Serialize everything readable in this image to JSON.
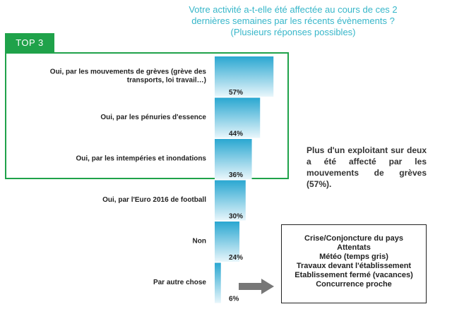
{
  "question": "Votre activité a-t-elle été affectée au cours de ces 2\ndernières semaines par les récents évènements ?\n(Plusieurs réponses possibles)",
  "top3_label": "TOP 3",
  "note": "Plus d'un exploitant sur deux a été affecté par les mouvements de grèves (57%).",
  "other_box": {
    "items": [
      "Crise/Conjoncture du pays",
      "Attentats",
      "Météo (temps gris)",
      "Travaux devant l'établissement",
      "Etablissement fermé (vacances)",
      "Concurrence proche"
    ]
  },
  "colors": {
    "bar_top": "#2aa7d1",
    "bar_bottom": "#e8f6fb",
    "accent_green": "#1fa24a",
    "question": "#36b6c9"
  },
  "chart_data": {
    "type": "bar",
    "orientation": "horizontal",
    "categories": [
      "Oui, par les mouvements de grèves (grève des transports, loi travail…)",
      "Oui, par les pénuries d'essence",
      "Oui, par les intempéries et inondations",
      "Oui, par l'Euro 2016 de football",
      "Non",
      "Par autre chose"
    ],
    "category_lines": [
      [
        "Oui, par les mouvements de grèves (grève des",
        "transports, loi travail…)"
      ],
      [
        "Oui, par les pénuries d'essence"
      ],
      [
        "Oui, par les intempéries et inondations"
      ],
      [
        "Oui, par l'Euro 2016 de football"
      ],
      [
        "Non"
      ],
      [
        "Par autre chose"
      ]
    ],
    "values": [
      57,
      44,
      36,
      30,
      24,
      6
    ],
    "value_labels": [
      "57%",
      "44%",
      "36%",
      "30%",
      "24%",
      "6%"
    ],
    "unit": "%",
    "xlim": [
      0,
      100
    ]
  }
}
